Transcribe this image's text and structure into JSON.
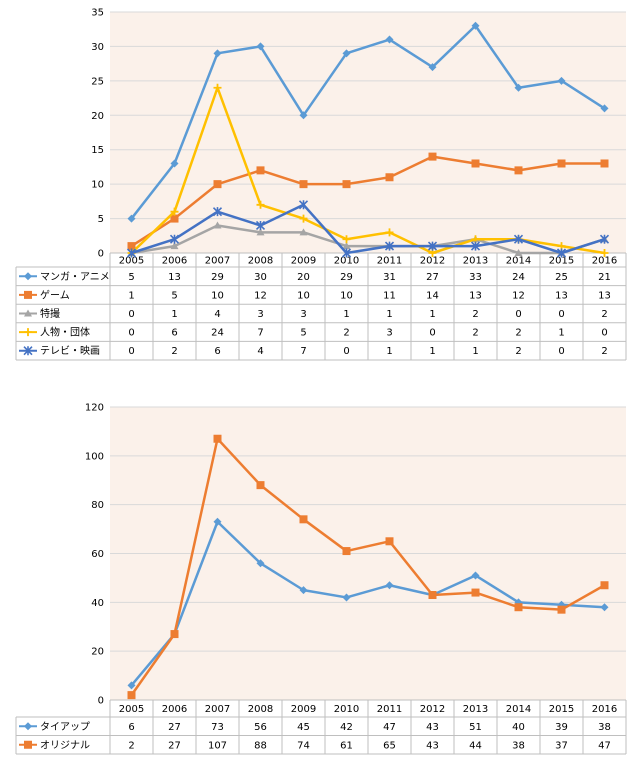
{
  "chart_data": [
    {
      "type": "line",
      "categories": [
        "2005",
        "2006",
        "2007",
        "2008",
        "2009",
        "2010",
        "2011",
        "2012",
        "2013",
        "2014",
        "2015",
        "2016"
      ],
      "ylim": [
        0,
        35
      ],
      "yticks": [
        0,
        5,
        10,
        15,
        20,
        25,
        30,
        35
      ],
      "grid": true,
      "legend": "data-table-left",
      "series": [
        {
          "name": "マンガ・アニメ",
          "color": "#5B9BD5",
          "marker": "diamond",
          "values": [
            5,
            13,
            29,
            30,
            20,
            29,
            31,
            27,
            33,
            24,
            25,
            21
          ]
        },
        {
          "name": "ゲーム",
          "color": "#ED7D31",
          "marker": "square",
          "values": [
            1,
            5,
            10,
            12,
            10,
            10,
            11,
            14,
            13,
            12,
            13,
            13
          ]
        },
        {
          "name": "特撮",
          "color": "#A5A5A5",
          "marker": "triangle",
          "values": [
            0,
            1,
            4,
            3,
            3,
            1,
            1,
            1,
            2,
            0,
            0,
            2
          ]
        },
        {
          "name": "人物・団体",
          "color": "#FFC000",
          "marker": "plus",
          "values": [
            0,
            6,
            24,
            7,
            5,
            2,
            3,
            0,
            2,
            2,
            1,
            0
          ]
        },
        {
          "name": "テレビ・映画",
          "color": "#4472C4",
          "marker": "star",
          "values": [
            0,
            2,
            6,
            4,
            7,
            0,
            1,
            1,
            1,
            2,
            0,
            2
          ]
        }
      ]
    },
    {
      "type": "line",
      "categories": [
        "2005",
        "2006",
        "2007",
        "2008",
        "2009",
        "2010",
        "2011",
        "2012",
        "2013",
        "2014",
        "2015",
        "2016"
      ],
      "ylim": [
        0,
        120
      ],
      "yticks": [
        0,
        20,
        40,
        60,
        80,
        100,
        120
      ],
      "grid": true,
      "legend": "data-table-left",
      "series": [
        {
          "name": "タイアップ",
          "color": "#5B9BD5",
          "marker": "diamond",
          "values": [
            6,
            27,
            73,
            56,
            45,
            42,
            47,
            43,
            51,
            40,
            39,
            38
          ]
        },
        {
          "name": "オリジナル",
          "color": "#ED7D31",
          "marker": "square",
          "values": [
            2,
            27,
            107,
            88,
            74,
            61,
            65,
            43,
            44,
            38,
            37,
            47
          ]
        }
      ]
    }
  ]
}
